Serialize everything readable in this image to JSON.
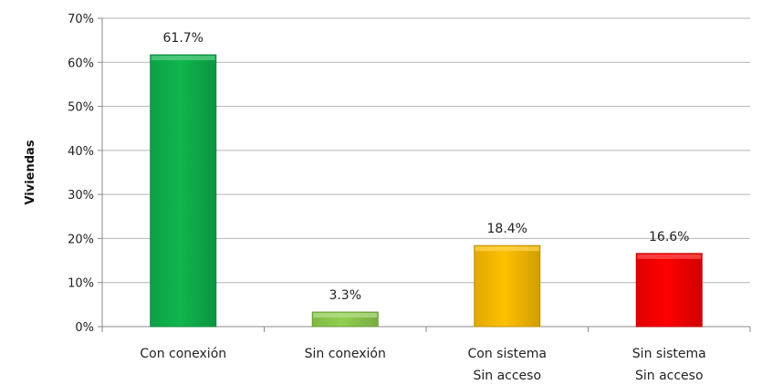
{
  "chart_data": {
    "type": "bar",
    "title": "",
    "xlabel": "",
    "ylabel": "Viviendas",
    "ylim": [
      0,
      70
    ],
    "yticks": [
      0,
      10,
      20,
      30,
      40,
      50,
      60,
      70
    ],
    "ytick_labels": [
      "0%",
      "10%",
      "20%",
      "30%",
      "40%",
      "50%",
      "60%",
      "70%"
    ],
    "grid": true,
    "legend": "none",
    "categories": [
      [
        "Con conexión"
      ],
      [
        "Sin conexión"
      ],
      [
        "Con sistema",
        "Sin acceso"
      ],
      [
        "Sin sistema",
        "Sin acceso"
      ]
    ],
    "values": [
      61.7,
      3.3,
      18.4,
      16.6
    ],
    "data_labels": [
      "61.7%",
      "3.3%",
      "18.4%",
      "16.6%"
    ],
    "colors": [
      "#0fb64e",
      "#92d050",
      "#ffc000",
      "#ff0000"
    ]
  }
}
